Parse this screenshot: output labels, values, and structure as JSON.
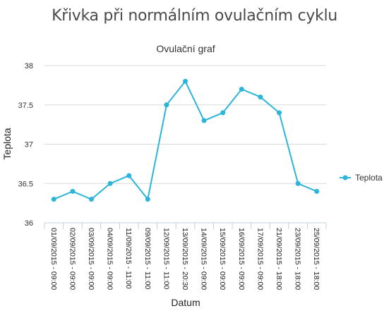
{
  "page": {
    "title": "Křivka při normálním ovulačním cyklu"
  },
  "chart_data": {
    "type": "line",
    "title": "Ovulační graf",
    "xlabel": "Datum",
    "ylabel": "Teplota",
    "ylim": [
      36,
      38
    ],
    "yticks": [
      "36",
      "36.5",
      "37",
      "37.5",
      "38"
    ],
    "grid": true,
    "legend_position": "right",
    "categories": [
      "01/09/2015 - 09:00",
      "02/09/2015 - 09:00",
      "03/09/2015 - 09:00",
      "04/09/2015 - 09:00",
      "11/09/2015 - 11:00",
      "09/09/2015 - 11:00",
      "12/09/2015 - 11:00",
      "13/09/2015 - 20:30",
      "14/09/2015 - 09:00",
      "15/09/2015 - 09:00",
      "16/09/2015 - 09:00",
      "17/09/2015 - 09:00",
      "21/09/2015 - 18:00",
      "23/09/2015 - 18:00",
      "25/09/2015 - 18:00"
    ],
    "series": [
      {
        "name": "Teplota",
        "color": "#2cb5d9",
        "values": [
          36.3,
          36.4,
          36.3,
          36.5,
          36.6,
          36.3,
          37.5,
          37.8,
          37.3,
          37.4,
          37.7,
          37.6,
          37.4,
          36.5,
          36.4
        ]
      }
    ]
  }
}
